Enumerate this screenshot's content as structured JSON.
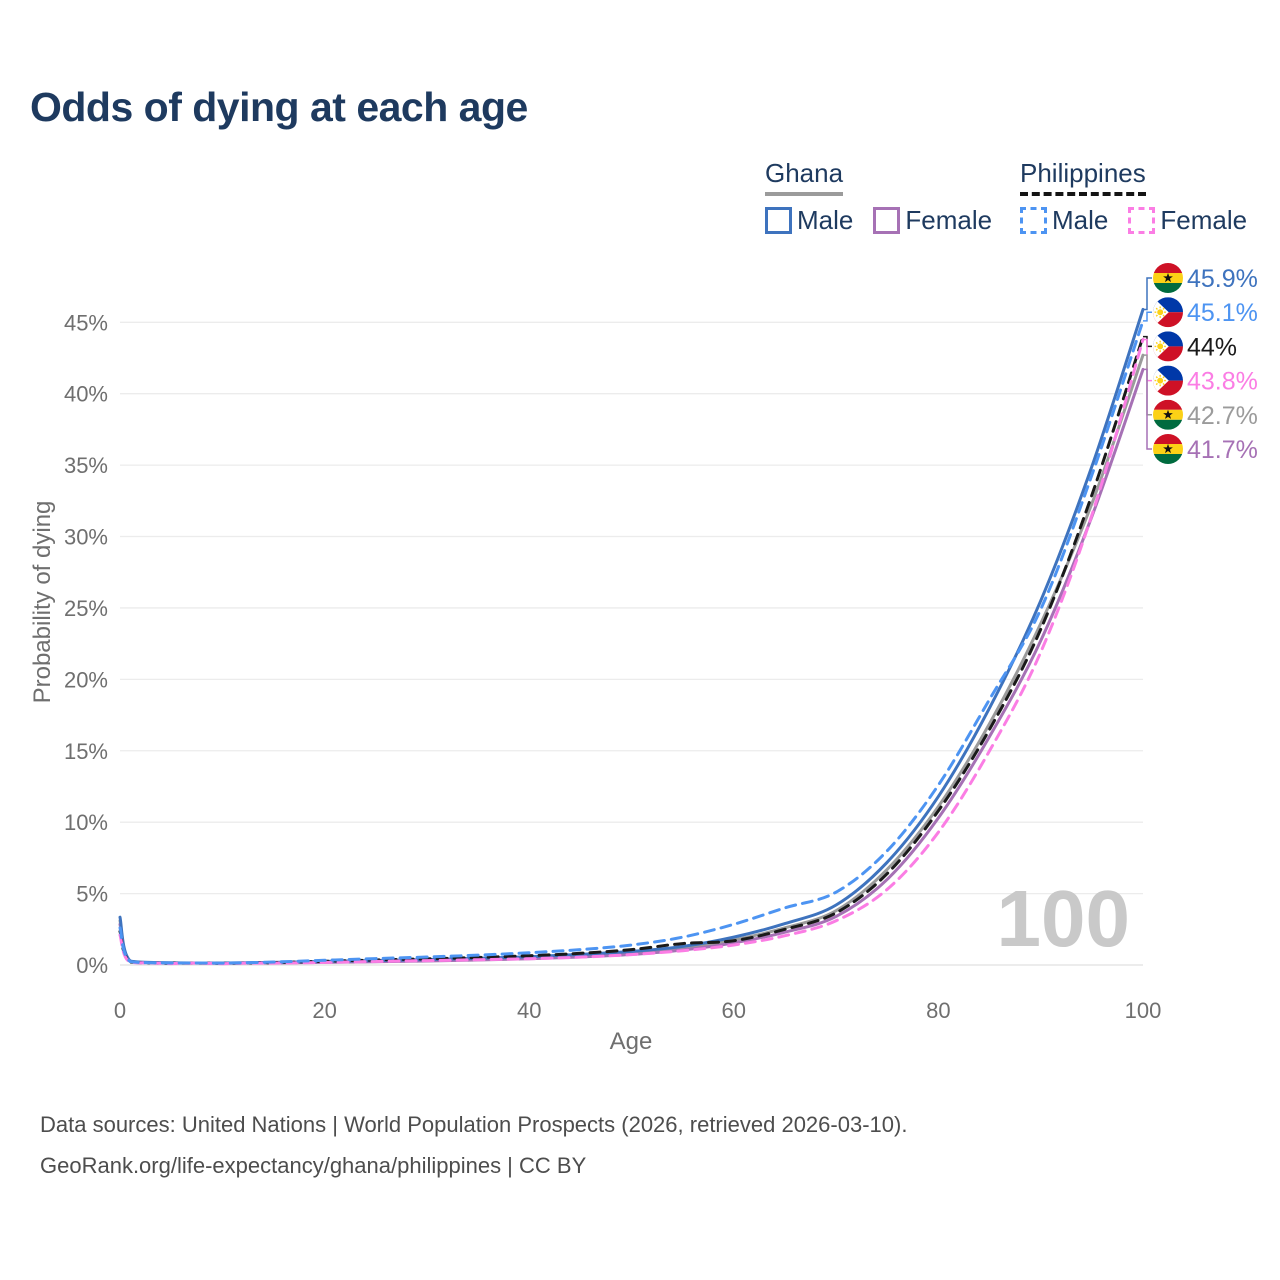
{
  "title": "Odds of dying at each age",
  "watermark": "100",
  "legend": {
    "groups": [
      {
        "label": "Ghana",
        "underline_style": "solid",
        "underline_color": "#9b9b9b",
        "items": [
          {
            "label": "Male",
            "color": "#3e73be",
            "dash": false
          },
          {
            "label": "Female",
            "color": "#a671b5",
            "dash": false
          }
        ]
      },
      {
        "label": "Philippines",
        "underline_style": "dashed",
        "underline_color": "#141414",
        "items": [
          {
            "label": "Male",
            "color": "#4d94f2",
            "dash": true
          },
          {
            "label": "Female",
            "color": "#fb7de4",
            "dash": true
          }
        ]
      }
    ]
  },
  "footer": {
    "line1": "Data sources: United Nations | World Population Prospects (2026, retrieved 2026-03-10).",
    "line2": "GeoRank.org/life-expectancy/ghana/philippines | CC BY"
  },
  "chart_data": {
    "type": "line",
    "title": "Odds of dying at each age",
    "xlabel": "Age",
    "ylabel": "Probability of dying",
    "xlim": [
      0,
      100
    ],
    "ylim_percent": [
      0,
      45
    ],
    "x_ticks": [
      0,
      20,
      40,
      60,
      80,
      100
    ],
    "y_ticks_percent": [
      0,
      5,
      10,
      15,
      20,
      25,
      30,
      35,
      40,
      45
    ],
    "grid": "horizontal",
    "legend_position": "top-right",
    "hover_age": "100",
    "x": [
      0,
      1,
      5,
      10,
      15,
      20,
      25,
      30,
      35,
      40,
      45,
      50,
      55,
      60,
      65,
      70,
      75,
      80,
      85,
      90,
      95,
      100
    ],
    "series": [
      {
        "name": "Ghana Male",
        "country": "Ghana",
        "sex": "Male",
        "flag": "ghana",
        "color": "#3e73be",
        "dash": "solid",
        "end_label": "45.9%",
        "values": [
          3.35,
          0.28,
          0.16,
          0.14,
          0.18,
          0.25,
          0.31,
          0.38,
          0.47,
          0.58,
          0.74,
          0.95,
          1.3,
          1.95,
          2.9,
          4.2,
          7.2,
          11.8,
          18.0,
          25.5,
          34.9,
          45.9
        ]
      },
      {
        "name": "Philippines Male",
        "country": "Philippines",
        "sex": "Male",
        "flag": "philippines",
        "color": "#4d94f2",
        "dash": "dashed",
        "end_label": "45.1%",
        "values": [
          2.6,
          0.24,
          0.14,
          0.13,
          0.21,
          0.33,
          0.45,
          0.56,
          0.69,
          0.86,
          1.08,
          1.4,
          1.95,
          2.85,
          4.0,
          5.1,
          8.0,
          12.6,
          18.6,
          24.9,
          34.3,
          45.1
        ]
      },
      {
        "name": "Philippines Both sexes",
        "country": "Philippines",
        "sex": "Both",
        "flag": "philippines",
        "color": "#1a1a1a",
        "dash": "dashed",
        "end_label": "44%",
        "values": [
          2.35,
          0.21,
          0.12,
          0.11,
          0.17,
          0.26,
          0.35,
          0.43,
          0.53,
          0.65,
          0.82,
          1.08,
          1.5,
          1.7,
          2.5,
          3.65,
          6.4,
          10.8,
          16.5,
          23.5,
          32.9,
          44.0
        ]
      },
      {
        "name": "Philippines Female",
        "country": "Philippines",
        "sex": "Female",
        "flag": "philippines",
        "color": "#fb7de4",
        "dash": "dashed",
        "end_label": "43.8%",
        "values": [
          2.1,
          0.18,
          0.1,
          0.09,
          0.13,
          0.18,
          0.25,
          0.31,
          0.37,
          0.44,
          0.55,
          0.73,
          1.0,
          1.4,
          2.05,
          3.1,
          5.3,
          9.3,
          15.0,
          21.9,
          31.5,
          43.8
        ]
      },
      {
        "name": "Ghana Both sexes",
        "country": "Ghana",
        "sex": "Both",
        "flag": "ghana",
        "color": "#9b9b9b",
        "dash": "solid",
        "end_label": "42.7%",
        "values": [
          3.1,
          0.26,
          0.15,
          0.13,
          0.16,
          0.21,
          0.27,
          0.33,
          0.41,
          0.51,
          0.65,
          0.85,
          1.18,
          1.75,
          2.6,
          3.8,
          6.7,
          11.1,
          16.9,
          23.9,
          32.3,
          42.7
        ]
      },
      {
        "name": "Ghana Female",
        "country": "Ghana",
        "sex": "Female",
        "flag": "ghana",
        "color": "#a671b5",
        "dash": "solid",
        "end_label": "41.7%",
        "values": [
          2.85,
          0.24,
          0.13,
          0.12,
          0.14,
          0.18,
          0.23,
          0.28,
          0.35,
          0.44,
          0.56,
          0.74,
          1.05,
          1.55,
          2.3,
          3.4,
          6.0,
          10.3,
          16.0,
          22.7,
          31.4,
          41.7
        ]
      }
    ],
    "flag_colors": {
      "ghana_red": "#ce1126",
      "ghana_gold": "#fcd116",
      "ghana_green": "#006b3f",
      "ghana_star": "#111111",
      "ph_blue": "#0038a8",
      "ph_red": "#ce1126",
      "ph_white": "#ffffff",
      "ph_sun": "#fcd116"
    }
  }
}
